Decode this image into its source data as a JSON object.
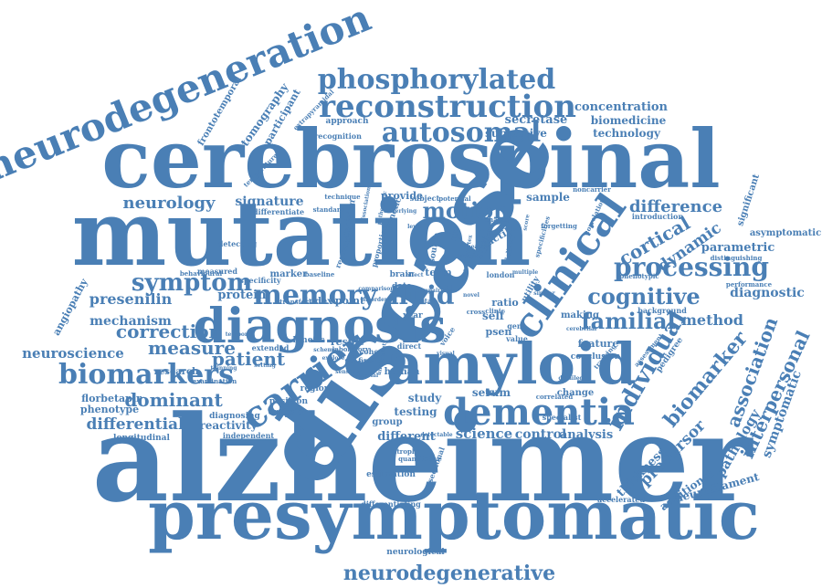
{
  "cloud": {
    "color": "#4a7fb5",
    "words": [
      {
        "text": "alzheimer",
        "weight": 100
      },
      {
        "text": "presymptomatic",
        "weight": 90
      },
      {
        "text": "cerebrospinal",
        "weight": 95
      },
      {
        "text": "mutation",
        "weight": 95
      },
      {
        "text": "disease",
        "weight": 98
      },
      {
        "text": "amyloid",
        "weight": 80
      },
      {
        "text": "diagnosis",
        "weight": 75
      },
      {
        "text": "dementia",
        "weight": 70
      },
      {
        "text": "neurodegeneration",
        "weight": 55
      },
      {
        "text": "reconstruction",
        "weight": 45
      },
      {
        "text": "phosphorylated",
        "weight": 42
      },
      {
        "text": "autosomal",
        "weight": 40
      },
      {
        "text": "clinical",
        "weight": 55
      },
      {
        "text": "carrier",
        "weight": 50
      },
      {
        "text": "biomarkers",
        "weight": 42
      },
      {
        "text": "neurodegenerative",
        "weight": 30
      },
      {
        "text": "processing",
        "weight": 40
      },
      {
        "text": "cognitive",
        "weight": 38
      },
      {
        "text": "memory",
        "weight": 40
      },
      {
        "text": "fluid",
        "weight": 40
      },
      {
        "text": "motion",
        "weight": 34
      },
      {
        "text": "symptom",
        "weight": 32
      },
      {
        "text": "individual",
        "weight": 32
      },
      {
        "text": "familial",
        "weight": 30
      },
      {
        "text": "patient",
        "weight": 28
      },
      {
        "text": "correction",
        "weight": 28
      },
      {
        "text": "measure",
        "weight": 28
      },
      {
        "text": "neurology",
        "weight": 26
      },
      {
        "text": "difference",
        "weight": 26
      },
      {
        "text": "dominant",
        "weight": 26
      },
      {
        "text": "differential",
        "weight": 24
      },
      {
        "text": "presenilin",
        "weight": 22
      },
      {
        "text": "mechanism",
        "weight": 20
      },
      {
        "text": "neuroscience",
        "weight": 18
      },
      {
        "text": "method",
        "weight": 22
      },
      {
        "text": "diagnostic",
        "weight": 20
      },
      {
        "text": "cortical",
        "weight": 22
      },
      {
        "text": "dynamic",
        "weight": 20
      },
      {
        "text": "parametric",
        "weight": 16
      },
      {
        "text": "biomarker",
        "weight": 22
      },
      {
        "text": "association",
        "weight": 20
      },
      {
        "text": "interpersonal",
        "weight": 20
      },
      {
        "text": "symptomatic",
        "weight": 16
      },
      {
        "text": "pathology",
        "weight": 16
      },
      {
        "text": "precursor",
        "weight": 18
      },
      {
        "text": "thickness",
        "weight": 14
      },
      {
        "text": "additional",
        "weight": 13
      },
      {
        "text": "neurofilament",
        "weight": 14
      },
      {
        "text": "science",
        "weight": 18
      },
      {
        "text": "control",
        "weight": 17
      },
      {
        "text": "analysis",
        "weight": 15
      },
      {
        "text": "different",
        "weight": 15
      },
      {
        "text": "serum",
        "weight": 14
      },
      {
        "text": "study",
        "weight": 14
      },
      {
        "text": "testing",
        "weight": 14
      },
      {
        "text": "protein",
        "weight": 17
      },
      {
        "text": "signature",
        "weight": 16
      },
      {
        "text": "concentration",
        "weight": 16
      },
      {
        "text": "biomedicine",
        "weight": 15
      },
      {
        "text": "technology",
        "weight": 15
      },
      {
        "text": "secretase",
        "weight": 15
      },
      {
        "text": "subjective",
        "weight": 15
      },
      {
        "text": "tomography",
        "weight": 13
      },
      {
        "text": "participant",
        "weight": 13
      },
      {
        "text": "frontotemporal",
        "weight": 11
      },
      {
        "text": "approach",
        "weight": 11
      },
      {
        "text": "sample",
        "weight": 14
      },
      {
        "text": "provide",
        "weight": 12
      },
      {
        "text": "florbetapir",
        "weight": 13
      },
      {
        "text": "phenotype",
        "weight": 13
      },
      {
        "text": "research",
        "weight": 12
      },
      {
        "text": "reactivity",
        "weight": 14
      },
      {
        "text": "longitudinal",
        "weight": 11
      },
      {
        "text": "angiopathy",
        "weight": 12
      },
      {
        "text": "asymptomatic",
        "weight": 13
      },
      {
        "text": "significant",
        "weight": 12
      },
      {
        "text": "positron",
        "weight": 11
      },
      {
        "text": "emission",
        "weight": 11
      },
      {
        "text": "kinetic",
        "weight": 11
      },
      {
        "text": "result",
        "weight": 12
      },
      {
        "text": "index",
        "weight": 12
      },
      {
        "text": "point",
        "weight": 14
      },
      {
        "text": "term",
        "weight": 14
      },
      {
        "text": "ratio",
        "weight": 12
      },
      {
        "text": "psen",
        "weight": 14
      },
      {
        "text": "self",
        "weight": 15
      },
      {
        "text": "change",
        "weight": 11
      },
      {
        "text": "human",
        "weight": 11
      },
      {
        "text": "group",
        "weight": 11
      },
      {
        "text": "feature",
        "weight": 12
      },
      {
        "text": "conclusion",
        "weight": 10
      },
      {
        "text": "making",
        "weight": 12
      },
      {
        "text": "tactile",
        "weight": 12
      },
      {
        "text": "marker",
        "weight": 11
      },
      {
        "text": "region",
        "weight": 11
      },
      {
        "text": "diagnosing",
        "weight": 10
      },
      {
        "text": "independent",
        "weight": 9
      },
      {
        "text": "estimation",
        "weight": 10
      },
      {
        "text": "sectional",
        "weight": 10
      },
      {
        "text": "differentiating",
        "weight": 9
      },
      {
        "text": "neurological",
        "weight": 10
      },
      {
        "text": "accelerated",
        "weight": 9
      },
      {
        "text": "pedigree",
        "weight": 10
      },
      {
        "text": "specialist",
        "weight": 9
      },
      {
        "text": "extended",
        "weight": 9
      },
      {
        "text": "examination",
        "weight": 8
      },
      {
        "text": "background",
        "weight": 9
      },
      {
        "text": "introduction",
        "weight": 9
      },
      {
        "text": "distinguishing",
        "weight": 8
      },
      {
        "text": "performance",
        "weight": 8
      },
      {
        "text": "specificity",
        "weight": 10
      },
      {
        "text": "decision",
        "weight": 11
      },
      {
        "text": "regression",
        "weight": 10
      },
      {
        "text": "genetic",
        "weight": 11
      },
      {
        "text": "subject",
        "weight": 10
      },
      {
        "text": "potential",
        "weight": 9
      },
      {
        "text": "differentiate",
        "weight": 9
      },
      {
        "text": "technique",
        "weight": 8
      },
      {
        "text": "standard",
        "weight": 9
      },
      {
        "text": "detecting",
        "weight": 9
      },
      {
        "text": "measured",
        "weight": 9
      },
      {
        "text": "baseline",
        "weight": 8
      },
      {
        "text": "transfer",
        "weight": 9
      },
      {
        "text": "brain",
        "weight": 10
      },
      {
        "text": "data",
        "weight": 10
      },
      {
        "text": "year",
        "weight": 10
      },
      {
        "text": "cohort",
        "weight": 10
      },
      {
        "text": "finding",
        "weight": 9
      },
      {
        "text": "direct",
        "weight": 10
      },
      {
        "text": "voice",
        "weight": 10
      },
      {
        "text": "value",
        "weight": 10
      },
      {
        "text": "gene",
        "weight": 10
      },
      {
        "text": "utility",
        "weight": 10
      },
      {
        "text": "london",
        "weight": 9
      },
      {
        "text": "delivery",
        "weight": 8
      },
      {
        "text": "clinic",
        "weight": 8
      },
      {
        "text": "source",
        "weight": 10
      },
      {
        "text": "proportion",
        "weight": 9
      },
      {
        "text": "recognition",
        "weight": 9
      },
      {
        "text": "quantitative",
        "weight": 8
      },
      {
        "text": "laboratory",
        "weight": 8
      },
      {
        "text": "extrapyramidal",
        "weight": 8
      },
      {
        "text": "temperature",
        "weight": 7
      },
      {
        "text": "noncarrier",
        "weight": 8
      },
      {
        "text": "chapter",
        "weight": 8
      },
      {
        "text": "forgetting",
        "weight": 8
      },
      {
        "text": "specificities",
        "weight": 8
      },
      {
        "text": "correlation",
        "weight": 7
      },
      {
        "text": "tracking",
        "weight": 7
      },
      {
        "text": "phenotypic",
        "weight": 8
      },
      {
        "text": "assessment",
        "weight": 7
      },
      {
        "text": "atrophy",
        "weight": 8
      },
      {
        "text": "detectable",
        "weight": 7
      },
      {
        "text": "correlated",
        "weight": 7
      },
      {
        "text": "cross",
        "weight": 8
      },
      {
        "text": "total",
        "weight": 8
      },
      {
        "text": "novel",
        "weight": 7
      },
      {
        "text": "affect",
        "weight": 7
      },
      {
        "text": "cerebellar",
        "weight": 7
      },
      {
        "text": "multiple",
        "weight": 7
      },
      {
        "text": "similar",
        "weight": 7
      },
      {
        "text": "visual",
        "weight": 7
      },
      {
        "text": "pathogenic",
        "weight": 7
      },
      {
        "text": "behavioural",
        "weight": 8
      },
      {
        "text": "underlying",
        "weight": 7
      },
      {
        "text": "temporal",
        "weight": 7
      },
      {
        "text": "dissociation",
        "weight": 7
      },
      {
        "text": "comparison",
        "weight": 7
      },
      {
        "text": "disorder",
        "weight": 7
      },
      {
        "text": "scheme",
        "weight": 7
      },
      {
        "text": "explore",
        "weight": 7
      },
      {
        "text": "setting",
        "weight": 7
      },
      {
        "text": "thinning",
        "weight": 7
      },
      {
        "text": "uncertainty",
        "weight": 7
      },
      {
        "text": "superior",
        "weight": 7
      },
      {
        "text": "sensitive",
        "weight": 7
      },
      {
        "text": "material",
        "weight": 7
      },
      {
        "text": "detailed",
        "weight": 7
      },
      {
        "text": "onset",
        "weight": 7
      },
      {
        "text": "cortex",
        "weight": 7
      },
      {
        "text": "level",
        "weight": 7
      },
      {
        "text": "stage",
        "weight": 7
      },
      {
        "text": "light",
        "weight": 7
      },
      {
        "text": "score",
        "weight": 7
      },
      {
        "text": "sequence",
        "weight": 7
      },
      {
        "text": "health",
        "weight": 7
      },
      {
        "text": "imaging",
        "weight": 7
      },
      {
        "text": "impairment",
        "weight": 7
      }
    ]
  }
}
